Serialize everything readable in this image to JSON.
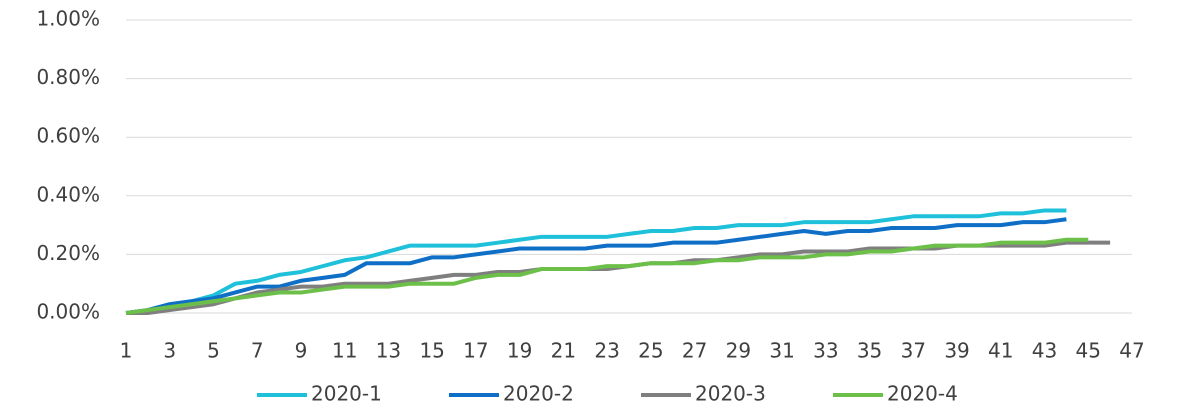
{
  "chart_data": {
    "type": "line",
    "x": [
      1,
      2,
      3,
      4,
      5,
      6,
      7,
      8,
      9,
      10,
      11,
      12,
      13,
      14,
      15,
      16,
      17,
      18,
      19,
      20,
      21,
      22,
      23,
      24,
      25,
      26,
      27,
      28,
      29,
      30,
      31,
      32,
      33,
      34,
      35,
      36,
      37,
      38,
      39,
      40,
      41,
      42,
      43,
      44,
      45,
      46
    ],
    "xlim": [
      1,
      47
    ],
    "xticks": [
      1,
      3,
      5,
      7,
      9,
      11,
      13,
      15,
      17,
      19,
      21,
      23,
      25,
      27,
      29,
      31,
      33,
      35,
      37,
      39,
      41,
      43,
      45,
      47
    ],
    "ylim": [
      0,
      1
    ],
    "yticks": [
      {
        "value": 0,
        "label": "0.00%"
      },
      {
        "value": 0.2,
        "label": "0.20%"
      },
      {
        "value": 0.4,
        "label": "0.40%"
      },
      {
        "value": 0.6,
        "label": "0.60%"
      },
      {
        "value": 0.8,
        "label": "0.80%"
      },
      {
        "value": 1,
        "label": "1.00%"
      }
    ],
    "grid": true,
    "legend": "bottom",
    "series": [
      {
        "name": "2020-1",
        "color": "#1fc0da",
        "values": [
          0,
          0.01,
          0.03,
          0.04,
          0.06,
          0.1,
          0.11,
          0.13,
          0.14,
          0.16,
          0.18,
          0.19,
          0.21,
          0.23,
          0.23,
          0.23,
          0.23,
          0.24,
          0.25,
          0.26,
          0.26,
          0.26,
          0.26,
          0.27,
          0.28,
          0.28,
          0.29,
          0.29,
          0.3,
          0.3,
          0.3,
          0.31,
          0.31,
          0.31,
          0.31,
          0.32,
          0.33,
          0.33,
          0.33,
          0.33,
          0.34,
          0.34,
          0.35,
          0.35,
          null,
          null
        ]
      },
      {
        "name": "2020-2",
        "color": "#0f6fc6",
        "values": [
          0,
          0.01,
          0.03,
          0.04,
          0.05,
          0.07,
          0.09,
          0.09,
          0.11,
          0.12,
          0.13,
          0.17,
          0.17,
          0.17,
          0.19,
          0.19,
          0.2,
          0.21,
          0.22,
          0.22,
          0.22,
          0.22,
          0.23,
          0.23,
          0.23,
          0.24,
          0.24,
          0.24,
          0.25,
          0.26,
          0.27,
          0.28,
          0.27,
          0.28,
          0.28,
          0.29,
          0.29,
          0.29,
          0.3,
          0.3,
          0.3,
          0.31,
          0.31,
          0.32,
          null,
          null
        ]
      },
      {
        "name": "2020-3",
        "color": "#7f7f7f",
        "values": [
          0,
          0,
          0.01,
          0.02,
          0.03,
          0.05,
          0.07,
          0.08,
          0.09,
          0.09,
          0.1,
          0.1,
          0.1,
          0.11,
          0.12,
          0.13,
          0.13,
          0.14,
          0.14,
          0.15,
          0.15,
          0.15,
          0.15,
          0.16,
          0.17,
          0.17,
          0.18,
          0.18,
          0.19,
          0.2,
          0.2,
          0.21,
          0.21,
          0.21,
          0.22,
          0.22,
          0.22,
          0.22,
          0.23,
          0.23,
          0.23,
          0.23,
          0.23,
          0.24,
          0.24,
          0.24
        ]
      },
      {
        "name": "2020-4",
        "color": "#6cc04a",
        "values": [
          0,
          0.01,
          0.02,
          0.03,
          0.04,
          0.05,
          0.06,
          0.07,
          0.07,
          0.08,
          0.09,
          0.09,
          0.09,
          0.1,
          0.1,
          0.1,
          0.12,
          0.13,
          0.13,
          0.15,
          0.15,
          0.15,
          0.16,
          0.16,
          0.17,
          0.17,
          0.17,
          0.18,
          0.18,
          0.19,
          0.19,
          0.19,
          0.2,
          0.2,
          0.21,
          0.21,
          0.22,
          0.23,
          0.23,
          0.23,
          0.24,
          0.24,
          0.24,
          0.25,
          0.25,
          null
        ]
      }
    ]
  }
}
